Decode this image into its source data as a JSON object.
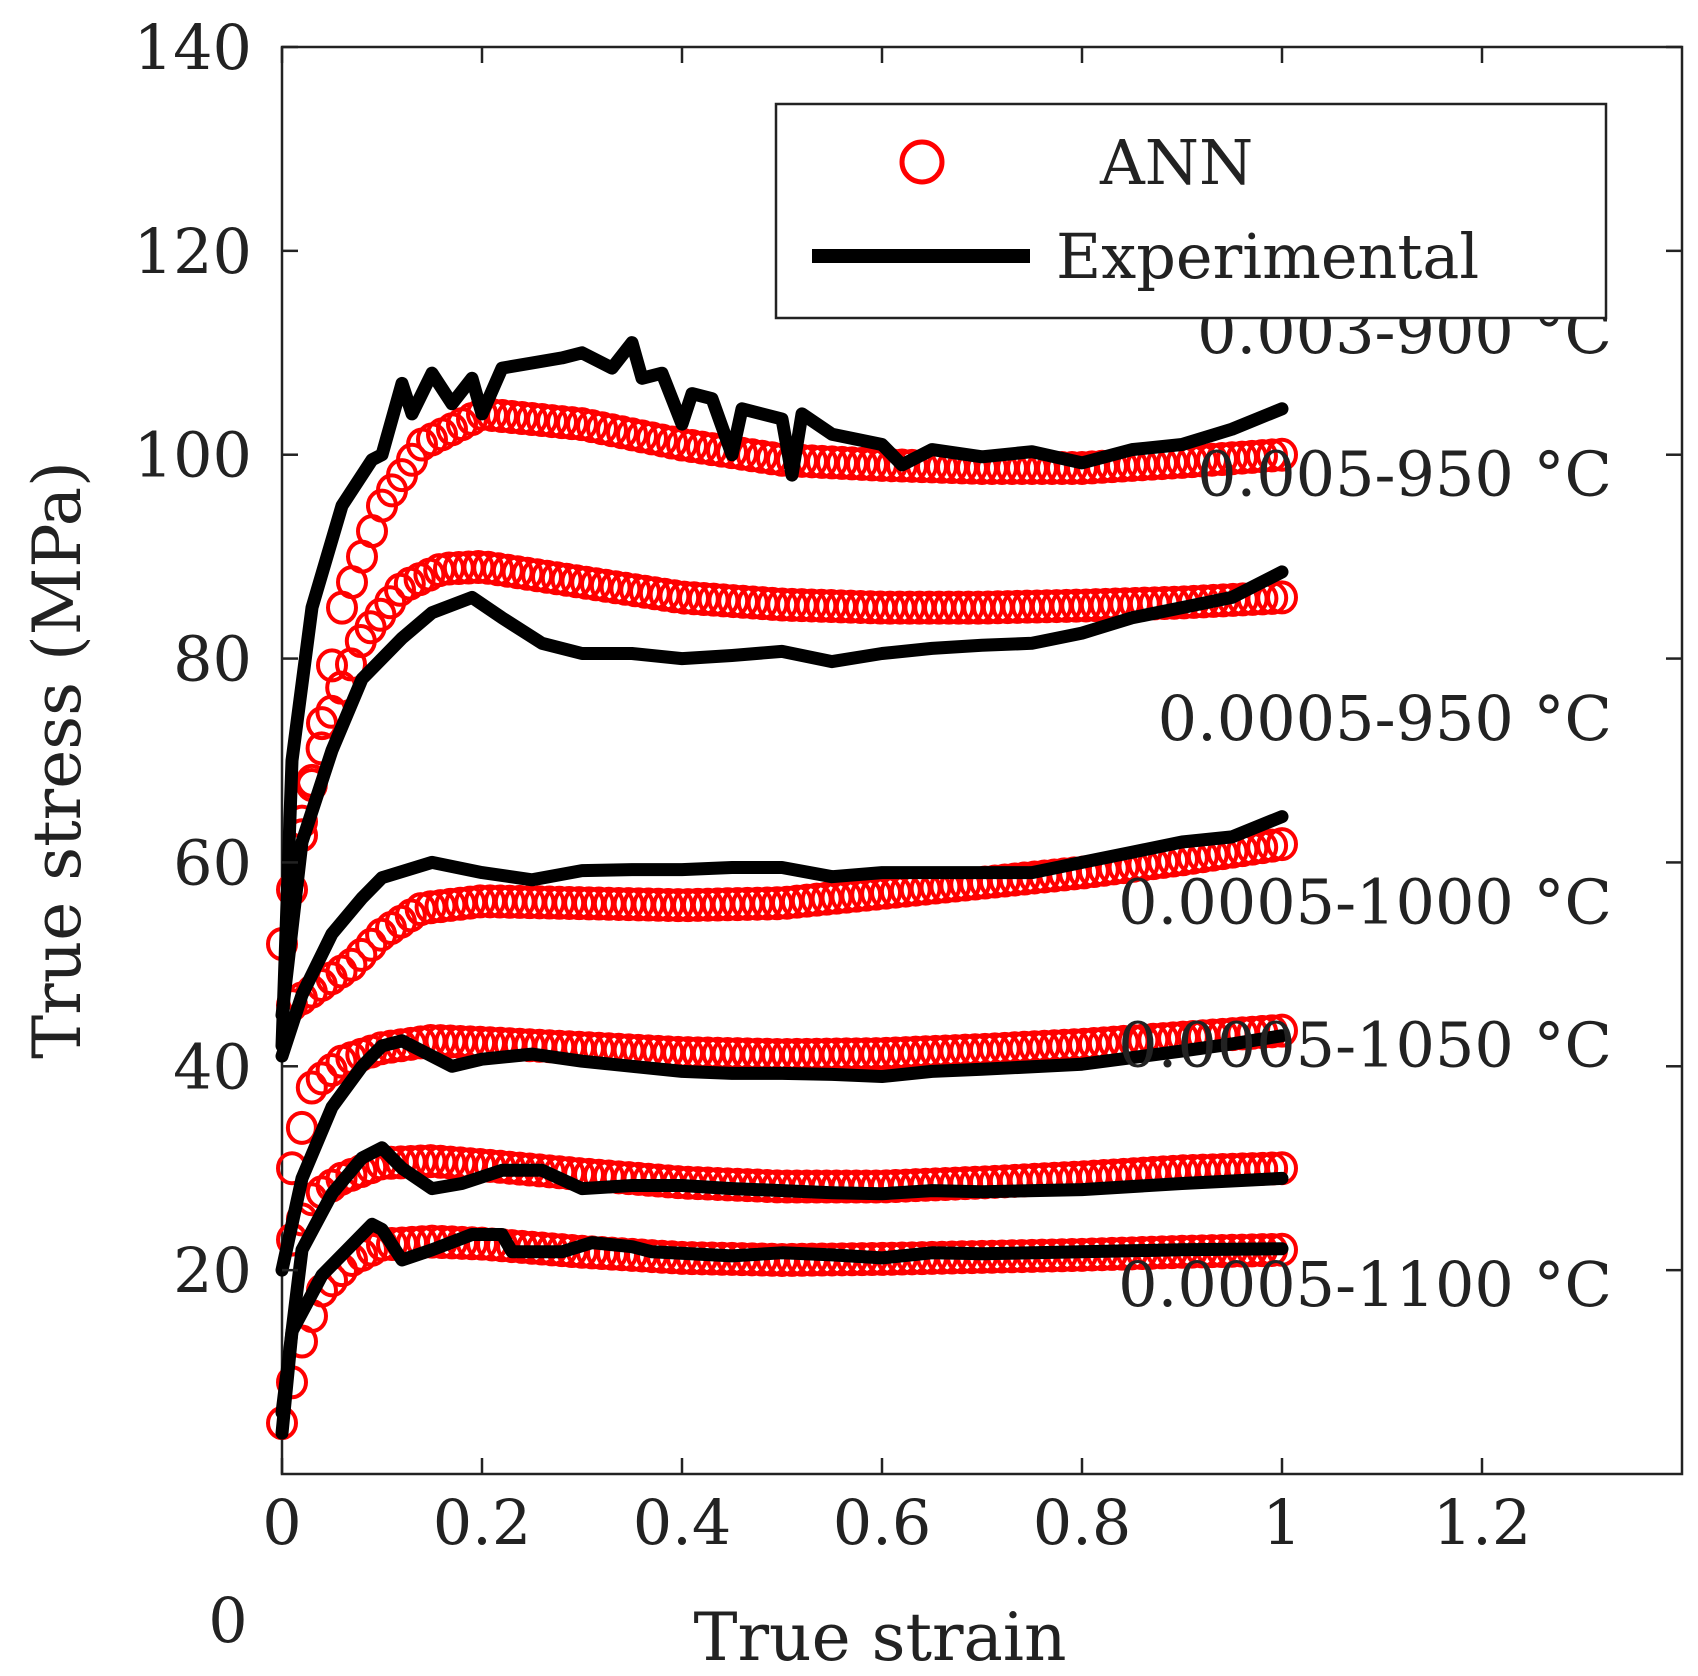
{
  "chart_data": {
    "type": "line",
    "title": "",
    "xlabel": "True strain",
    "ylabel": "True stress (MPa)",
    "xlim": [
      0,
      1.4
    ],
    "ylim": [
      0,
      140
    ],
    "xticks": [
      0,
      0.2,
      0.4,
      0.6,
      0.8,
      1,
      1.2
    ],
    "xtick_labels": [
      "0",
      "0.2",
      "0.4",
      "0.6",
      "0.8",
      "1",
      "1.2"
    ],
    "yticks": [
      20,
      40,
      60,
      80,
      100,
      120,
      140
    ],
    "ytick_labels": [
      "20",
      "40",
      "60",
      "80",
      "100",
      "120",
      "140"
    ],
    "origin_label": "0",
    "grid": false,
    "legend": {
      "placement": "top-right",
      "entries": [
        {
          "label": "ANN",
          "marker": "circle",
          "color": "#ff0000"
        },
        {
          "label": "Experimental",
          "marker": "line",
          "color": "#000000"
        }
      ]
    },
    "colors": {
      "ann": "#ff0000",
      "experimental": "#000000",
      "axes": "#222222"
    },
    "conditions": [
      {
        "label": "0.003-900 °C",
        "label_x": 1.33,
        "label_y": 110,
        "ann": {
          "points": [
            [
              0,
              52
            ],
            [
              0.03,
              68
            ],
            [
              0.06,
              85
            ],
            [
              0.1,
              95
            ],
            [
              0.14,
              101
            ],
            [
              0.2,
              104
            ],
            [
              0.3,
              103
            ],
            [
              0.4,
              101
            ],
            [
              0.5,
              99.5
            ],
            [
              0.6,
              99
            ],
            [
              0.7,
              98.7
            ],
            [
              0.8,
              98.7
            ],
            [
              0.9,
              99.3
            ],
            [
              1,
              100
            ]
          ]
        },
        "experimental": {
          "points": [
            [
              0,
              42
            ],
            [
              0.01,
              70
            ],
            [
              0.03,
              85
            ],
            [
              0.06,
              95
            ],
            [
              0.09,
              99.5
            ],
            [
              0.1,
              100
            ],
            [
              0.12,
              107
            ],
            [
              0.13,
              104
            ],
            [
              0.15,
              108
            ],
            [
              0.17,
              105
            ],
            [
              0.19,
              107.5
            ],
            [
              0.2,
              104
            ],
            [
              0.22,
              108.5
            ],
            [
              0.25,
              109
            ],
            [
              0.28,
              109.5
            ],
            [
              0.3,
              110
            ],
            [
              0.33,
              108.5
            ],
            [
              0.35,
              111
            ],
            [
              0.36,
              107.5
            ],
            [
              0.38,
              108
            ],
            [
              0.4,
              103
            ],
            [
              0.41,
              106
            ],
            [
              0.43,
              105.5
            ],
            [
              0.45,
              100
            ],
            [
              0.46,
              104.5
            ],
            [
              0.5,
              103.5
            ],
            [
              0.51,
              98
            ],
            [
              0.52,
              104
            ],
            [
              0.55,
              102
            ],
            [
              0.6,
              101
            ],
            [
              0.62,
              99
            ],
            [
              0.65,
              100.5
            ],
            [
              0.7,
              99.8
            ],
            [
              0.75,
              100.3
            ],
            [
              0.8,
              99.2
            ],
            [
              0.85,
              100.5
            ],
            [
              0.9,
              101
            ],
            [
              0.95,
              102.5
            ],
            [
              1,
              104.5
            ]
          ]
        }
      },
      {
        "label": "0.005-950 °C",
        "label_x": 1.33,
        "label_y": 96,
        "ann": {
          "points": [
            [
              0.02,
              64
            ],
            [
              0.05,
              75
            ],
            [
              0.08,
              82
            ],
            [
              0.12,
              87
            ],
            [
              0.16,
              88.8
            ],
            [
              0.2,
              89
            ],
            [
              0.3,
              87.5
            ],
            [
              0.4,
              86
            ],
            [
              0.5,
              85.3
            ],
            [
              0.6,
              85
            ],
            [
              0.7,
              85
            ],
            [
              0.8,
              85.2
            ],
            [
              0.9,
              85.5
            ],
            [
              1,
              86
            ]
          ]
        },
        "experimental": {
          "points": [
            [
              0,
              45
            ],
            [
              0.02,
              62
            ],
            [
              0.05,
              71
            ],
            [
              0.08,
              78
            ],
            [
              0.12,
              82
            ],
            [
              0.15,
              84.5
            ],
            [
              0.19,
              86
            ],
            [
              0.22,
              84
            ],
            [
              0.26,
              81.5
            ],
            [
              0.3,
              80.5
            ],
            [
              0.35,
              80.5
            ],
            [
              0.4,
              80
            ],
            [
              0.45,
              80.3
            ],
            [
              0.5,
              80.7
            ],
            [
              0.55,
              79.7
            ],
            [
              0.6,
              80.5
            ],
            [
              0.65,
              81
            ],
            [
              0.7,
              81.3
            ],
            [
              0.75,
              81.5
            ],
            [
              0.8,
              82.5
            ],
            [
              0.85,
              84
            ],
            [
              0.9,
              85
            ],
            [
              0.95,
              86
            ],
            [
              1,
              88.5
            ]
          ]
        }
      },
      {
        "label": "0.0005-950 °C",
        "label_x": 1.33,
        "label_y": 72,
        "ann": {
          "points": [
            [
              0.01,
              46
            ],
            [
              0.04,
              48
            ],
            [
              0.07,
              50
            ],
            [
              0.1,
              53
            ],
            [
              0.14,
              55.5
            ],
            [
              0.2,
              56.2
            ],
            [
              0.3,
              56
            ],
            [
              0.4,
              55.8
            ],
            [
              0.5,
              56
            ],
            [
              0.6,
              57
            ],
            [
              0.7,
              58
            ],
            [
              0.8,
              59
            ],
            [
              0.9,
              60.3
            ],
            [
              1,
              61.8
            ]
          ]
        },
        "experimental": {
          "points": [
            [
              0,
              41
            ],
            [
              0.02,
              47
            ],
            [
              0.05,
              53
            ],
            [
              0.08,
              56.5
            ],
            [
              0.1,
              58.5
            ],
            [
              0.15,
              60
            ],
            [
              0.2,
              59
            ],
            [
              0.25,
              58.3
            ],
            [
              0.3,
              59.2
            ],
            [
              0.35,
              59.3
            ],
            [
              0.4,
              59.3
            ],
            [
              0.45,
              59.5
            ],
            [
              0.5,
              59.5
            ],
            [
              0.55,
              58.6
            ],
            [
              0.6,
              59
            ],
            [
              0.7,
              59
            ],
            [
              0.75,
              59
            ],
            [
              0.8,
              60
            ],
            [
              0.85,
              61
            ],
            [
              0.9,
              62
            ],
            [
              0.95,
              62.5
            ],
            [
              1,
              64.5
            ]
          ]
        }
      },
      {
        "label": "0.0005-1000 °C",
        "label_x": 1.33,
        "label_y": 54,
        "ann": {
          "points": [
            [
              0.01,
              30
            ],
            [
              0.03,
              38
            ],
            [
              0.06,
              40.5
            ],
            [
              0.1,
              41.8
            ],
            [
              0.15,
              42.5
            ],
            [
              0.2,
              42.3
            ],
            [
              0.3,
              41.8
            ],
            [
              0.4,
              41.3
            ],
            [
              0.5,
              41.1
            ],
            [
              0.6,
              41.2
            ],
            [
              0.7,
              41.6
            ],
            [
              0.8,
              42.1
            ],
            [
              0.9,
              42.8
            ],
            [
              1,
              43.5
            ]
          ]
        },
        "experimental": {
          "points": [
            [
              0,
              20
            ],
            [
              0.02,
              29
            ],
            [
              0.05,
              36
            ],
            [
              0.08,
              40
            ],
            [
              0.1,
              42
            ],
            [
              0.12,
              42.5
            ],
            [
              0.14,
              41.5
            ],
            [
              0.17,
              40
            ],
            [
              0.2,
              40.7
            ],
            [
              0.25,
              41.2
            ],
            [
              0.3,
              40.5
            ],
            [
              0.35,
              40
            ],
            [
              0.4,
              39.5
            ],
            [
              0.45,
              39.3
            ],
            [
              0.5,
              39.3
            ],
            [
              0.55,
              39.2
            ],
            [
              0.6,
              39
            ],
            [
              0.65,
              39.5
            ],
            [
              0.7,
              39.7
            ],
            [
              0.8,
              40.2
            ],
            [
              0.9,
              41.5
            ],
            [
              0.95,
              42.2
            ],
            [
              1,
              43
            ]
          ]
        }
      },
      {
        "label": "0.0005-1050 °C",
        "label_x": 1.33,
        "label_y": 40,
        "ann": {
          "points": [
            [
              0.01,
              23
            ],
            [
              0.03,
              27
            ],
            [
              0.06,
              29
            ],
            [
              0.1,
              30.5
            ],
            [
              0.15,
              30.7
            ],
            [
              0.2,
              30.3
            ],
            [
              0.3,
              29.4
            ],
            [
              0.4,
              28.6
            ],
            [
              0.5,
              28.2
            ],
            [
              0.6,
              28.2
            ],
            [
              0.7,
              28.6
            ],
            [
              0.8,
              29.1
            ],
            [
              0.9,
              29.7
            ],
            [
              1,
              30
            ]
          ]
        },
        "experimental": {
          "points": [
            [
              0,
              6
            ],
            [
              0.02,
              22
            ],
            [
              0.05,
              27.5
            ],
            [
              0.08,
              31
            ],
            [
              0.1,
              32
            ],
            [
              0.12,
              30
            ],
            [
              0.15,
              28
            ],
            [
              0.18,
              28.5
            ],
            [
              0.22,
              29.8
            ],
            [
              0.26,
              29.8
            ],
            [
              0.3,
              28
            ],
            [
              0.35,
              28.3
            ],
            [
              0.4,
              28.3
            ],
            [
              0.45,
              28
            ],
            [
              0.5,
              27.8
            ],
            [
              0.55,
              27.6
            ],
            [
              0.6,
              27.5
            ],
            [
              0.65,
              27.8
            ],
            [
              0.7,
              27.7
            ],
            [
              0.8,
              27.9
            ],
            [
              0.9,
              28.5
            ],
            [
              1,
              29
            ]
          ]
        }
      },
      {
        "label": "0.0005-1100 °C",
        "label_x": 1.33,
        "label_y": 16.5,
        "ann": {
          "points": [
            [
              0,
              5
            ],
            [
              0.02,
              13
            ],
            [
              0.04,
              18
            ],
            [
              0.07,
              21
            ],
            [
              0.1,
              22.5
            ],
            [
              0.15,
              22.8
            ],
            [
              0.2,
              22.6
            ],
            [
              0.3,
              21.8
            ],
            [
              0.4,
              21.2
            ],
            [
              0.5,
              21
            ],
            [
              0.6,
              21.1
            ],
            [
              0.7,
              21.3
            ],
            [
              0.8,
              21.5
            ],
            [
              0.9,
              21.8
            ],
            [
              1,
              22
            ]
          ]
        },
        "experimental": {
          "points": [
            [
              0,
              4
            ],
            [
              0.01,
              14
            ],
            [
              0.04,
              19.5
            ],
            [
              0.07,
              22.5
            ],
            [
              0.09,
              24.5
            ],
            [
              0.1,
              24
            ],
            [
              0.12,
              21
            ],
            [
              0.15,
              22
            ],
            [
              0.19,
              23.5
            ],
            [
              0.22,
              23.5
            ],
            [
              0.23,
              21.8
            ],
            [
              0.28,
              21.8
            ],
            [
              0.31,
              22.7
            ],
            [
              0.35,
              22.3
            ],
            [
              0.37,
              21.8
            ],
            [
              0.45,
              21.4
            ],
            [
              0.5,
              21.7
            ],
            [
              0.55,
              21.5
            ],
            [
              0.6,
              21.2
            ],
            [
              0.65,
              21.7
            ],
            [
              0.7,
              21.6
            ],
            [
              0.8,
              21.8
            ],
            [
              0.9,
              22
            ],
            [
              1,
              22.1
            ]
          ]
        }
      }
    ]
  }
}
